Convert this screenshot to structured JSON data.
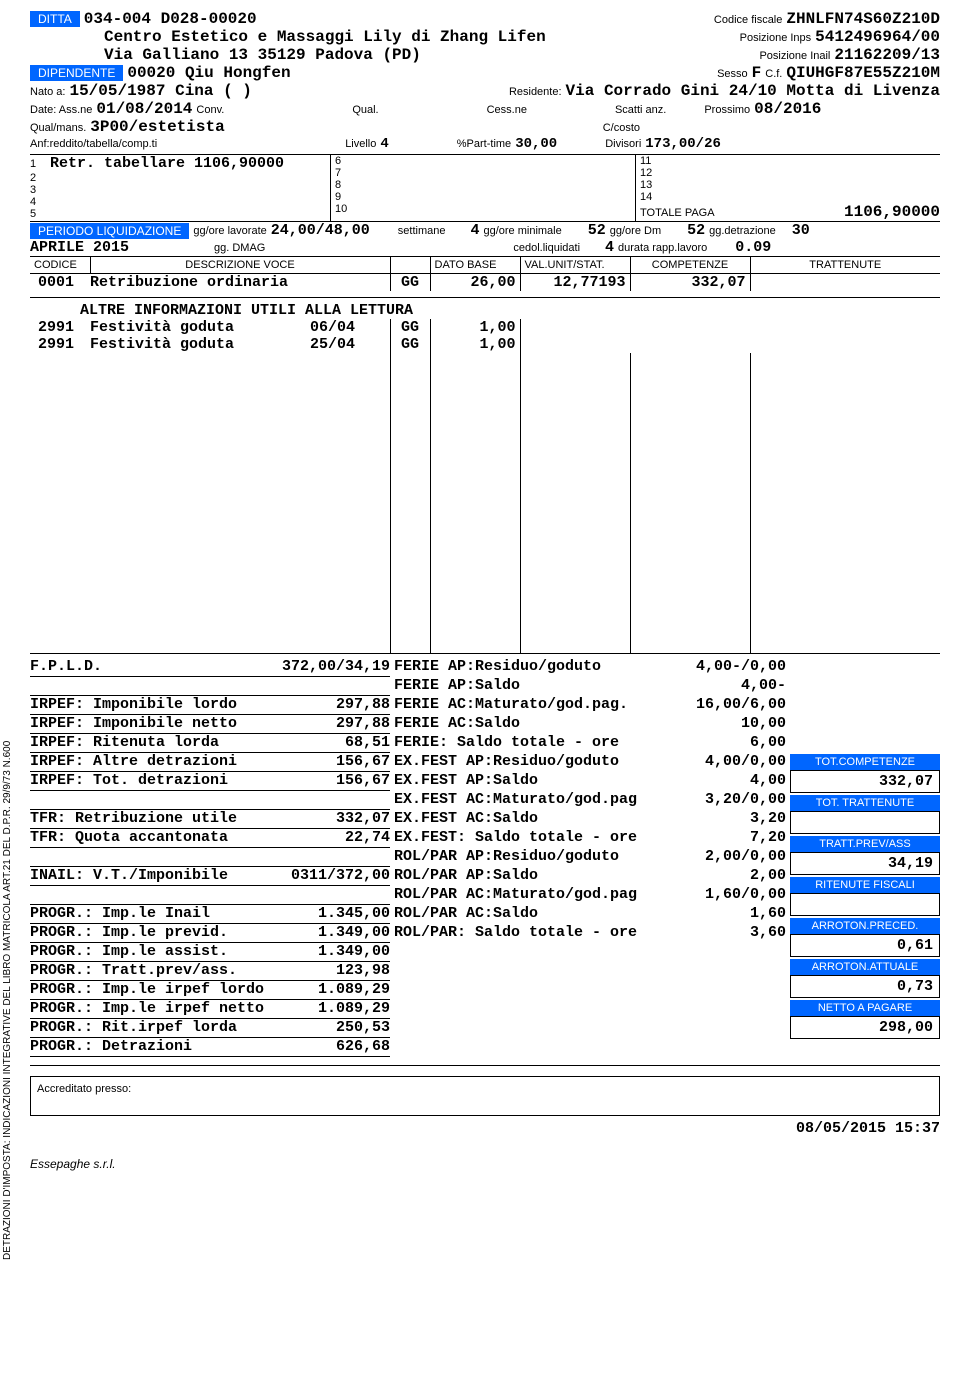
{
  "ditta_label": "DITTA",
  "ditta_code": "034-004 D028-00020",
  "cf_label": "Codice fiscale",
  "cf": "ZHNLFN74S60Z210D",
  "ditta_name": "Centro Estetico e Massaggi Lily di Zhang Lifen",
  "inps_label": "Posizione Inps",
  "inps": "5412496964/00",
  "addr": "Via Galliano 13  35129 Padova  (PD)",
  "inail_label": "Posizione Inail",
  "inail": "21162209/13",
  "dip_label": "DIPENDENTE",
  "dip": "00020 Qiu Hongfen",
  "sesso_label": "Sesso",
  "sesso": "F",
  "cf2_label": "C.f.",
  "cf2": "QIUHGF87E55Z210M",
  "nato_label": "Nato a:",
  "nato": "15/05/1987 Cina  (  )",
  "res_label": "Residente:",
  "res": "Via Corrado Gini 24/10  Motta di Livenza",
  "date_ass_label": "Date: Ass.ne",
  "date_ass": "01/08/2014",
  "conv_label": "Conv.",
  "qual_label": "Qual.",
  "cess_label": "Cess.ne",
  "scatti_label": "Scatti anz.",
  "prossimo_label": "Prossimo",
  "prossimo": "08/2016",
  "qualmans_label": "Qual/mans.",
  "qualmans": "3P00/estetista",
  "ccosto_label": "C/costo",
  "anf_label": "Anf:reddito/tabella/comp.ti",
  "livello_label": "Livello",
  "livello": "4",
  "parttime_label": "%Part-time",
  "parttime": "30,00",
  "divisori_label": "Divisori",
  "divisori": "173,00/26",
  "retr_rows": {
    "1": "Retr. tabellare 1106,90000",
    "2": "",
    "3": "",
    "4": "",
    "5": "",
    "6": "",
    "7": "",
    "8": "",
    "9": "",
    "10": "",
    "11": "",
    "12": "",
    "13": "",
    "14": ""
  },
  "totale_paga_label": "TOTALE PAGA",
  "totale_paga": "1106,90000",
  "periodo_label": "PERIODO LIQUIDAZIONE",
  "gg_lav_label": "gg/ore lavorate",
  "gg_lav": "24,00/48,00",
  "sett_label": "settimane",
  "sett": "4",
  "gg_min_label": "gg/ore minimale",
  "gg_min": "52",
  "gg_dm_label": "gg/ore Dm",
  "gg_dm": "52",
  "gg_detr_label": "gg.detrazione",
  "gg_detr": "30",
  "periodo": "APRILE 2015",
  "dmag_label": "gg. DMAG",
  "cedol_label": "cedol.liquidati",
  "cedol": "4",
  "durata_label": "durata rapp.lavoro",
  "durata": "0.09",
  "th": {
    "codice": "CODICE",
    "descr": "DESCRIZIONE VOCE",
    "dato": "DATO BASE",
    "val": "VAL.UNIT/STAT.",
    "comp": "COMPETENZE",
    "tratt": "TRATTENUTE"
  },
  "voci": [
    {
      "cod": "0001",
      "descr": "Retribuzione ordinaria",
      "um": "GG",
      "dato": "26,00",
      "val": "12,77193",
      "comp": "332,07",
      "tratt": ""
    }
  ],
  "altre_info": "ALTRE INFORMAZIONI UTILI ALLA LETTURA",
  "fest": [
    {
      "cod": "2991",
      "descr": "Festività goduta",
      "data": "06/04",
      "um": "GG",
      "dato": "1,00"
    },
    {
      "cod": "2991",
      "descr": "Festività goduta",
      "data": "25/04",
      "um": "GG",
      "dato": "1,00"
    }
  ],
  "left": [
    {
      "k": "F.P.L.D.",
      "v": "372,00/34,19"
    },
    {
      "k": "",
      "v": ""
    },
    {
      "k": "IRPEF: Imponibile lordo",
      "v": "297,88"
    },
    {
      "k": "IRPEF: Imponibile netto",
      "v": "297,88"
    },
    {
      "k": "IRPEF: Ritenuta lorda",
      "v": "68,51"
    },
    {
      "k": "IRPEF: Altre detrazioni",
      "v": "156,67"
    },
    {
      "k": "IRPEF: Tot. detrazioni",
      "v": "156,67"
    },
    {
      "k": "",
      "v": ""
    },
    {
      "k": "TFR: Retribuzione utile",
      "v": "332,07"
    },
    {
      "k": "TFR: Quota accantonata",
      "v": "22,74"
    },
    {
      "k": "",
      "v": ""
    },
    {
      "k": "INAIL: V.T./Imponibile",
      "v": "0311/372,00"
    },
    {
      "k": "",
      "v": ""
    },
    {
      "k": "PROGR.: Imp.le Inail",
      "v": "1.345,00"
    },
    {
      "k": "PROGR.: Imp.le previd.",
      "v": "1.349,00"
    },
    {
      "k": "PROGR.: Imp.le assist.",
      "v": "1.349,00"
    },
    {
      "k": "PROGR.: Tratt.prev/ass.",
      "v": "123,98"
    },
    {
      "k": "PROGR.: Imp.le irpef lordo",
      "v": "1.089,29"
    },
    {
      "k": "PROGR.: Imp.le irpef netto",
      "v": "1.089,29"
    },
    {
      "k": "PROGR.: Rit.irpef lorda",
      "v": "250,53"
    },
    {
      "k": "PROGR.: Detrazioni",
      "v": "626,68"
    }
  ],
  "mid": [
    {
      "k": "FERIE AP:Residuo/goduto",
      "v": "4,00-/0,00"
    },
    {
      "k": "FERIE AP:Saldo",
      "v": "4,00-"
    },
    {
      "k": "FERIE AC:Maturato/god.pag.",
      "v": "16,00/6,00"
    },
    {
      "k": "FERIE AC:Saldo",
      "v": "10,00"
    },
    {
      "k": "FERIE:  Saldo totale - ore",
      "v": "6,00"
    },
    {
      "k": "EX.FEST AP:Residuo/goduto",
      "v": "4,00/0,00"
    },
    {
      "k": "EX.FEST AP:Saldo",
      "v": "4,00"
    },
    {
      "k": "EX.FEST AC:Maturato/god.pag",
      "v": "3,20/0,00"
    },
    {
      "k": "EX.FEST AC:Saldo",
      "v": "3,20"
    },
    {
      "k": "EX.FEST: Saldo totale - ore",
      "v": "7,20"
    },
    {
      "k": "ROL/PAR AP:Residuo/goduto",
      "v": "2,00/0,00"
    },
    {
      "k": "ROL/PAR AP:Saldo",
      "v": "2,00"
    },
    {
      "k": "ROL/PAR AC:Maturato/god.pag",
      "v": "1,60/0,00"
    },
    {
      "k": "ROL/PAR AC:Saldo",
      "v": "1,60"
    },
    {
      "k": "ROL/PAR: Saldo totale - ore",
      "v": "3,60"
    }
  ],
  "totals": [
    {
      "label": "TOT.COMPETENZE",
      "val": "332,07"
    },
    {
      "label": "TOT. TRATTENUTE",
      "val": ""
    },
    {
      "label": "TRATT.PREV/ASS",
      "val": "34,19"
    },
    {
      "label": "RITENUTE FISCALI",
      "val": ""
    },
    {
      "label": "ARROTON.PRECED.",
      "val": "0,61"
    },
    {
      "label": "ARROTON.ATTUALE",
      "val": "0,73"
    },
    {
      "label": "NETTO A PAGARE",
      "val": "298,00"
    }
  ],
  "accreditato": "Accreditato presso:",
  "timestamp": "08/05/2015  15:37",
  "vertical": "DETRAZIONI D'IMPOSTA: INDICAZIONI INTEGRATIVE DEL LIBRO MATRICOLA ART.21 DEL D.P.R. 29/9/73 N.600",
  "footer": "Essepaghe s.r.l."
}
